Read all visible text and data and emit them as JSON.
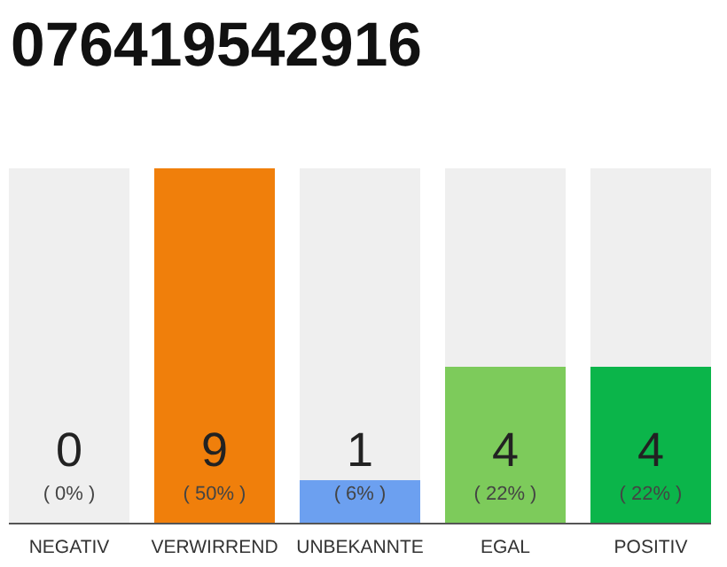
{
  "chart_data": {
    "type": "bar",
    "title": "076419542916",
    "categories": [
      "NEGATIV",
      "VERWIRREND",
      "UNBEKANNTE",
      "EGAL",
      "POSITIV"
    ],
    "values": [
      0,
      50,
      6,
      22,
      22
    ],
    "colors": [
      "#888888",
      "#f07f0b",
      "#6ca0f0",
      "#7dcb5b",
      "#0bb54a"
    ],
    "value_labels": [
      "( 0% )",
      "( 50% )",
      "( 6% )",
      "( 22% )",
      "( 22% )"
    ],
    "annotations": [
      "0",
      "9",
      "1",
      "4",
      "4"
    ],
    "bands": [
      {
        "axis": "x",
        "from": "NEGATIV",
        "to": "NEGATIV",
        "color": "#efefef"
      },
      {
        "axis": "x",
        "from": "UNBEKANNTE",
        "to": "UNBEKANNTE",
        "color": "#efefef"
      },
      {
        "axis": "x",
        "from": "EGAL",
        "to": "EGAL",
        "color": "#efefef"
      },
      {
        "axis": "x",
        "from": "POSITIV",
        "to": "POSITIV",
        "color": "#efefef"
      }
    ]
  }
}
